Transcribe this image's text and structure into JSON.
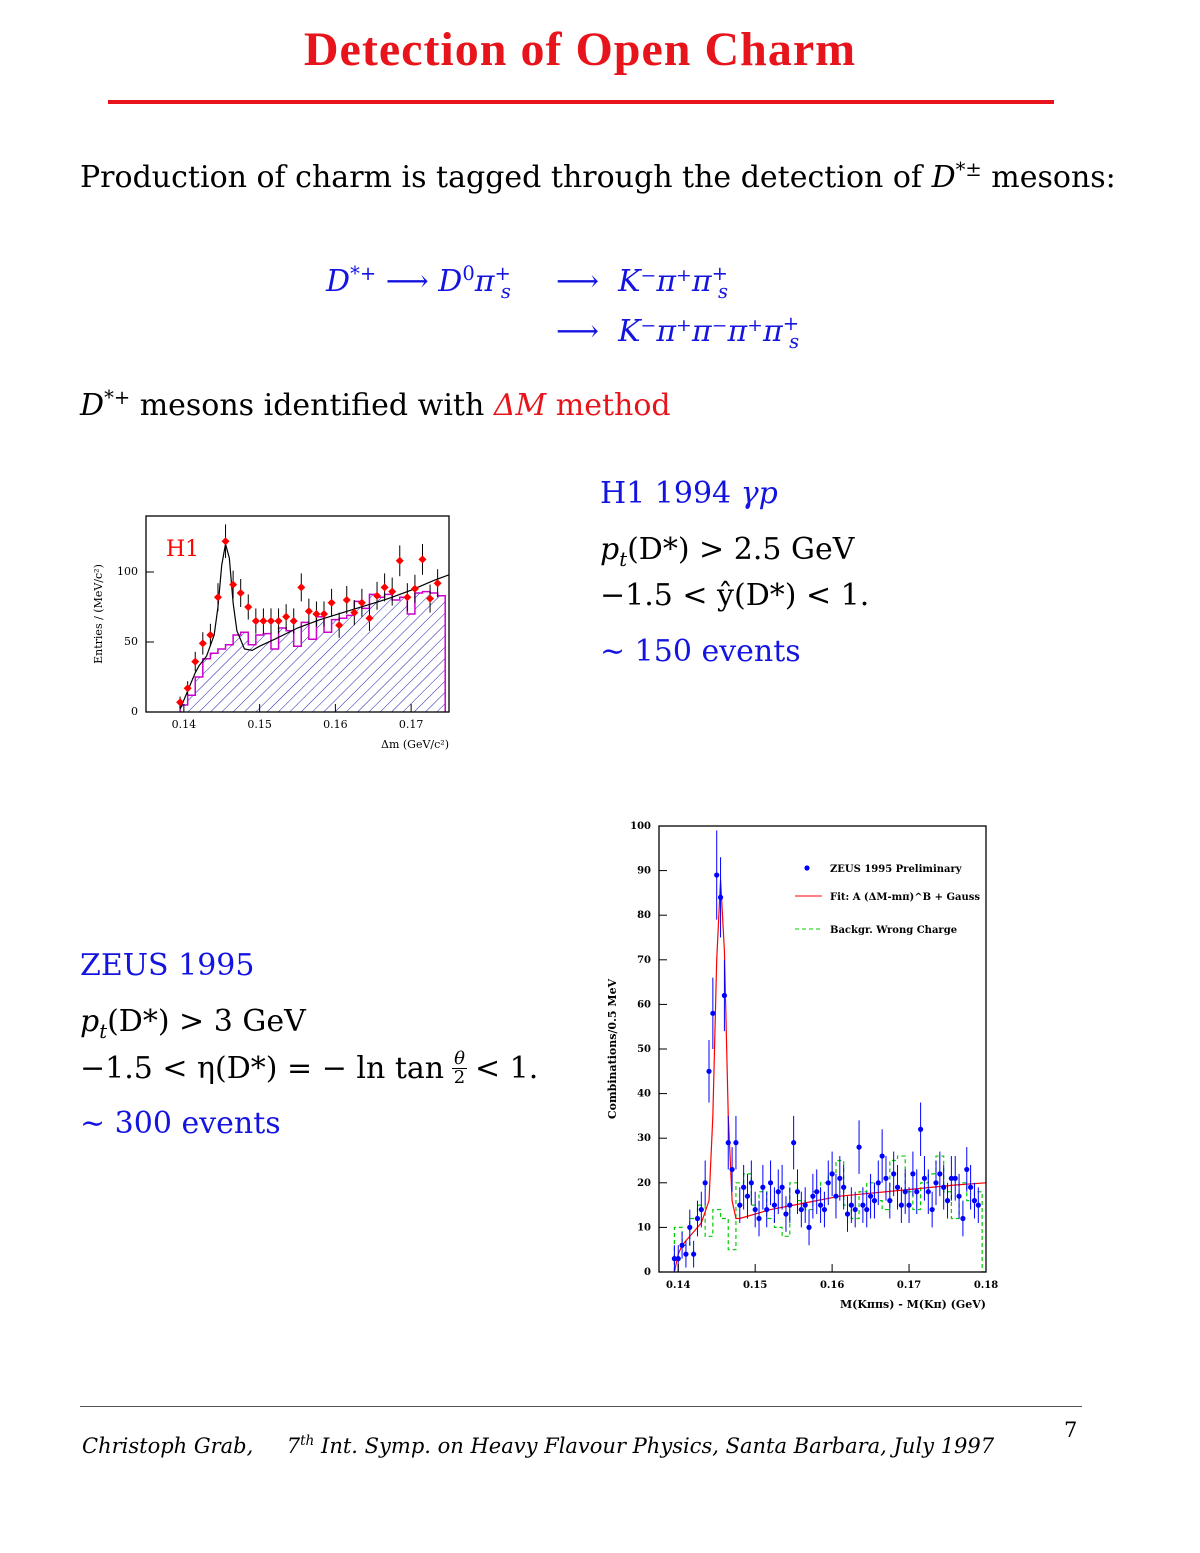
{
  "title": "Detection of Open Charm",
  "intro": {
    "text": "Production of charm is tagged through the detection of",
    "symbol": "D",
    "sup": "*±",
    "tail": "mesons:"
  },
  "decay": {
    "lhs": "D",
    "lhs_sup": "*+",
    "arrow": "⟶",
    "mid": "D",
    "mid_sup": "0",
    "mid_pi": "π",
    "mid_pi_sup": "+",
    "mid_pi_sub": "s",
    "chain1": "K⁻π⁺π",
    "chain2": "K⁻π⁺π⁻π⁺π",
    "s_sup": "+",
    "s_sub": "s"
  },
  "dm_line": {
    "prefix_sym": "D",
    "prefix_sup": "*+",
    "text": "mesons identified with",
    "method_sym": "ΔM",
    "method": "method"
  },
  "h1": {
    "heading": "H1 1994",
    "heading_sym": "γp",
    "cut1": "p",
    "cut1_sub": "t",
    "cut1_rest": "(D*) > 2.5 GeV",
    "cut2": "−1.5 < ŷ(D*) < 1.",
    "events": "∼ 150 events"
  },
  "zeus": {
    "heading": "ZEUS 1995",
    "cut1": "p",
    "cut1_sub": "t",
    "cut1_rest": "(D*) > 3 GeV",
    "cut2_a": "−1.5 < η(D*) = − ln tan",
    "cut2_num": "θ",
    "cut2_den": "2",
    "cut2_b": "< 1.",
    "events": "∼ 300 events"
  },
  "footer": {
    "author": "Christoph Grab,",
    "conf_num": "7",
    "conf_sup": "th",
    "conf": "Int.  Symp.  on Heavy Flavour Physics, Santa Barbara, July 1997",
    "page": "7"
  },
  "colors": {
    "title": "#e8141c",
    "text_blue": "#1414e0",
    "h1_points": "#ff0000",
    "h1_hist": "#cc00cc",
    "hatch": "#2020b0",
    "zeus_points": "#0000ff",
    "zeus_fit": "#ff0000",
    "zeus_bkg": "#00cc00"
  },
  "chart_data": [
    {
      "type": "scatter",
      "label": "H1",
      "ylabel": "Entries / (MeV/c²)",
      "xlabel": "Δm  (GeV/c²)",
      "xlim": [
        0.135,
        0.175
      ],
      "ylim": [
        0,
        140
      ],
      "xticks": [
        0.14,
        0.15,
        0.16,
        0.17
      ],
      "xtick_labels": [
        "0.14",
        "0.15",
        "0.16",
        "0.17"
      ],
      "yticks": [
        0,
        50,
        100
      ],
      "ytick_labels": [
        "0",
        "50",
        "100"
      ],
      "series": [
        {
          "kind": "points",
          "x": [
            0.1395,
            0.1405,
            0.1415,
            0.1425,
            0.1435,
            0.1445,
            0.1455,
            0.1465,
            0.1475,
            0.1485,
            0.1495,
            0.1505,
            0.1515,
            0.1525,
            0.1535,
            0.1545,
            0.1555,
            0.1565,
            0.1575,
            0.1585,
            0.1595,
            0.1605,
            0.1615,
            0.1625,
            0.1635,
            0.1645,
            0.1655,
            0.1665,
            0.1675,
            0.1685,
            0.1695,
            0.1705,
            0.1715,
            0.1725,
            0.1735
          ],
          "y": [
            7,
            17,
            36,
            49,
            55,
            82,
            122,
            91,
            85,
            75,
            65,
            65,
            65,
            65,
            68,
            65,
            89,
            72,
            70,
            70,
            78,
            62,
            80,
            71,
            78,
            67,
            83,
            89,
            86,
            108,
            82,
            88,
            109,
            81,
            92
          ],
          "err": [
            4,
            5,
            7,
            8,
            8,
            10,
            12,
            10,
            10,
            9,
            9,
            9,
            9,
            9,
            9,
            9,
            10,
            9,
            9,
            9,
            10,
            9,
            10,
            9,
            10,
            9,
            10,
            10,
            10,
            11,
            10,
            10,
            11,
            10,
            10
          ]
        },
        {
          "kind": "fit",
          "x": [
            0.1395,
            0.1405,
            0.1415,
            0.142,
            0.143,
            0.144,
            0.1445,
            0.145,
            0.1455,
            0.146,
            0.1465,
            0.147,
            0.148,
            0.149,
            0.15,
            0.152,
            0.155,
            0.158,
            0.161,
            0.164,
            0.167,
            0.17,
            0.173,
            0.175
          ],
          "y": [
            2,
            15,
            28,
            33,
            40,
            55,
            75,
            105,
            120,
            110,
            78,
            58,
            45,
            44,
            47,
            52,
            60,
            66,
            71,
            76,
            81,
            87,
            94,
            98
          ]
        },
        {
          "kind": "histogram",
          "edges": [
            0.1395,
            0.1405,
            0.1415,
            0.1425,
            0.1435,
            0.1445,
            0.1455,
            0.1465,
            0.1475,
            0.1485,
            0.1495,
            0.1505,
            0.1515,
            0.1525,
            0.1535,
            0.1545,
            0.1555,
            0.1565,
            0.1575,
            0.1585,
            0.1595,
            0.1605,
            0.1615,
            0.1625,
            0.1635,
            0.1645,
            0.1655,
            0.1665,
            0.1675,
            0.1685,
            0.1695,
            0.1705,
            0.1715,
            0.1725,
            0.1735,
            0.1745
          ],
          "y": [
            5,
            12,
            25,
            38,
            42,
            45,
            48,
            55,
            57,
            48,
            55,
            56,
            45,
            60,
            58,
            47,
            64,
            52,
            68,
            57,
            66,
            67,
            69,
            79,
            74,
            84,
            82,
            84,
            80,
            82,
            70,
            85,
            86,
            85,
            83
          ]
        }
      ]
    },
    {
      "type": "scatter",
      "ylabel": "Combinations/0.5  MeV",
      "xlabel": "M(Kππs) - M(Kπ)  (GeV)",
      "xlim": [
        0.1375,
        0.18
      ],
      "ylim": [
        0,
        100
      ],
      "xticks": [
        0.14,
        0.15,
        0.16,
        0.17,
        0.18
      ],
      "xtick_labels": [
        "0.14",
        "0.15",
        "0.16",
        "0.17",
        "0.18"
      ],
      "yticks": [
        0,
        10,
        20,
        30,
        40,
        50,
        60,
        70,
        80,
        90,
        100
      ],
      "ytick_labels": [
        "0",
        "10",
        "20",
        "30",
        "40",
        "50",
        "60",
        "70",
        "80",
        "90",
        "100"
      ],
      "legend": [
        "ZEUS 1995 Preliminary",
        "Fit: A (ΔM-mπ)^B + Gauss",
        "Backgr. Wrong Charge"
      ],
      "series": [
        {
          "kind": "points",
          "name": "ZEUS 1995 Preliminary",
          "x": [
            0.1395,
            0.14,
            0.1405,
            0.141,
            0.1415,
            0.142,
            0.1425,
            0.143,
            0.1435,
            0.144,
            0.1445,
            0.145,
            0.1455,
            0.146,
            0.1465,
            0.147,
            0.1475,
            0.148,
            0.1485,
            0.149,
            0.1495,
            0.15,
            0.1505,
            0.151,
            0.1515,
            0.152,
            0.1525,
            0.153,
            0.1535,
            0.154,
            0.1545,
            0.155,
            0.1555,
            0.156,
            0.1565,
            0.157,
            0.1575,
            0.158,
            0.1585,
            0.159,
            0.1595,
            0.16,
            0.1605,
            0.161,
            0.1615,
            0.162,
            0.1625,
            0.163,
            0.1635,
            0.164,
            0.1645,
            0.165,
            0.1655,
            0.166,
            0.1665,
            0.167,
            0.1675,
            0.168,
            0.1685,
            0.169,
            0.1695,
            0.17,
            0.1705,
            0.171,
            0.1715,
            0.172,
            0.1725,
            0.173,
            0.1735,
            0.174,
            0.1745,
            0.175,
            0.1755,
            0.176,
            0.1765,
            0.177,
            0.1775,
            0.178,
            0.1785,
            0.179
          ],
          "y": [
            3,
            3,
            6,
            4,
            10,
            4,
            12,
            14,
            20,
            45,
            58,
            89,
            84,
            62,
            29,
            23,
            29,
            15,
            19,
            17,
            20,
            14,
            12,
            19,
            14,
            20,
            15,
            18,
            19,
            13,
            15,
            29,
            18,
            14,
            15,
            10,
            17,
            18,
            15,
            14,
            20,
            22,
            17,
            21,
            19,
            13,
            15,
            14,
            28,
            15,
            14,
            17,
            16,
            20,
            26,
            21,
            16,
            22,
            19,
            15,
            18,
            15,
            22,
            18,
            32,
            21,
            18,
            14,
            20,
            22,
            19,
            16,
            21,
            21,
            17,
            12,
            23,
            19,
            16,
            15
          ],
          "err": [
            3,
            3,
            3,
            3,
            4,
            3,
            4,
            4,
            5,
            7,
            8,
            10,
            9,
            8,
            6,
            5,
            6,
            4,
            5,
            5,
            5,
            4,
            4,
            5,
            4,
            5,
            4,
            5,
            5,
            4,
            4,
            6,
            5,
            4,
            4,
            4,
            5,
            5,
            4,
            4,
            5,
            5,
            5,
            5,
            5,
            4,
            4,
            4,
            6,
            4,
            4,
            5,
            4,
            5,
            6,
            5,
            4,
            5,
            5,
            4,
            5,
            4,
            5,
            5,
            6,
            5,
            5,
            4,
            5,
            5,
            5,
            4,
            5,
            5,
            5,
            4,
            5,
            5,
            4,
            4
          ]
        },
        {
          "kind": "fit",
          "name": "Fit: A (ΔM-mπ)^B + Gauss",
          "x": [
            0.1395,
            0.14,
            0.1405,
            0.141,
            0.142,
            0.143,
            0.144,
            0.1445,
            0.145,
            0.1455,
            0.146,
            0.1465,
            0.147,
            0.1475,
            0.148,
            0.149,
            0.15,
            0.152,
            0.155,
            0.158,
            0.161,
            0.164,
            0.167,
            0.17,
            0.173,
            0.176,
            0.18
          ],
          "y": [
            0,
            4,
            6,
            7,
            9,
            11,
            16,
            35,
            70,
            88,
            72,
            35,
            16,
            12,
            12,
            12.5,
            13,
            14,
            15,
            16,
            17,
            17.5,
            18,
            18.5,
            19,
            19.5,
            20
          ]
        },
        {
          "kind": "histogram",
          "name": "Backgr. Wrong Charge",
          "edges": [
            0.1395,
            0.1405,
            0.1415,
            0.1425,
            0.1435,
            0.1445,
            0.1455,
            0.1465,
            0.1475,
            0.1485,
            0.1495,
            0.1505,
            0.1515,
            0.1525,
            0.1535,
            0.1545,
            0.1555,
            0.1565,
            0.1575,
            0.1585,
            0.1595,
            0.1605,
            0.1615,
            0.1625,
            0.1635,
            0.1645,
            0.1655,
            0.1665,
            0.1675,
            0.1685,
            0.1695,
            0.1705,
            0.1715,
            0.1725,
            0.1735,
            0.1745,
            0.1755,
            0.1765,
            0.1775,
            0.1785,
            0.1795,
            0.18
          ],
          "y": [
            10,
            6,
            12,
            15,
            8,
            14,
            12,
            5,
            20,
            22,
            15,
            18,
            12,
            10,
            8,
            20,
            16,
            14,
            18,
            20,
            22,
            25,
            15,
            12,
            18,
            20,
            16,
            14,
            25,
            26,
            18,
            14,
            20,
            22,
            26,
            18,
            12,
            20,
            16,
            18,
            0
          ]
        }
      ]
    }
  ]
}
